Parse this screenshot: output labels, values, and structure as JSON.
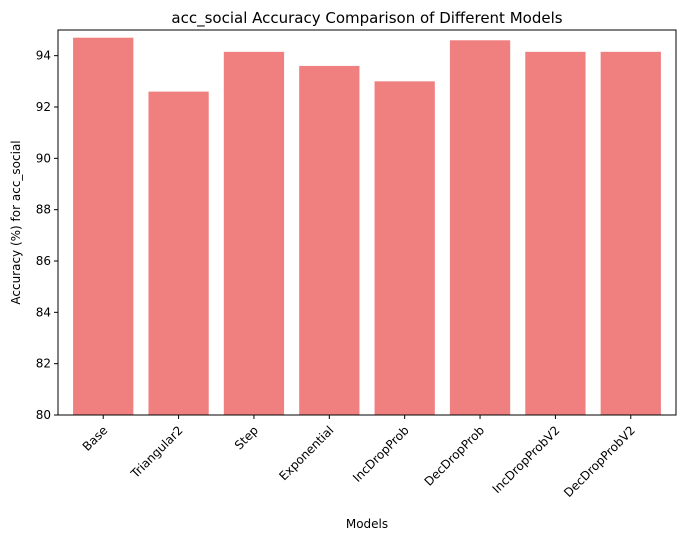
{
  "chart_data": {
    "type": "bar",
    "title": "acc_social Accuracy Comparison of Different Models",
    "xlabel": "Models",
    "ylabel": "Accuracy (%) for acc_social",
    "categories": [
      "Base",
      "Triangular2",
      "Step",
      "Exponential",
      "IncDropProb",
      "DecDropProb",
      "IncDropProbV2",
      "DecDropProbV2"
    ],
    "values": [
      94.7,
      92.6,
      94.15,
      93.6,
      93.0,
      94.6,
      94.15,
      94.15
    ],
    "ylim": [
      80,
      95
    ],
    "yticks": [
      80,
      82,
      84,
      86,
      88,
      90,
      92,
      94
    ],
    "grid": false,
    "legend": "none",
    "bar_color": "#f08080",
    "xtick_rotation": 45
  }
}
